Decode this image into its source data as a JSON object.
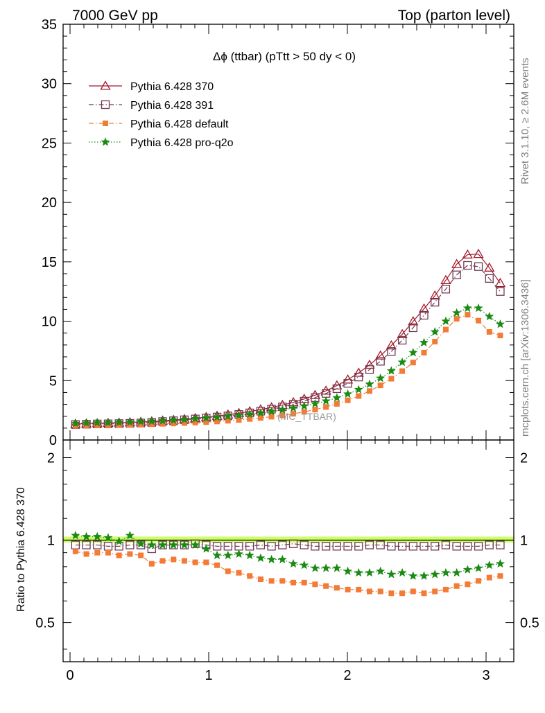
{
  "header": {
    "left": "7000 GeV pp",
    "right": "Top (parton level)"
  },
  "side_text": {
    "rivet": "Rivet 3.1.10, ≥ 2.6M events",
    "mcplots": "mcplots.cern.ch [arXiv:1306.3436]"
  },
  "watermark": "(MC_TTBAR)",
  "colors": {
    "p370": "#a0182a",
    "p391": "#6f3a52",
    "default": "#f27b36",
    "proq2o": "#1b8a14",
    "band": "#ccff66"
  },
  "chart_data": [
    {
      "type": "line",
      "title": "Δϕ (ttbar) (pTtt > 50 dy < 0)",
      "xlim": [
        -0.05,
        3.2
      ],
      "ylim": [
        0,
        35
      ],
      "y_ticks": [
        0,
        5,
        10,
        15,
        20,
        25,
        30,
        35
      ],
      "legend_placement": "top-left",
      "x": [
        0.0393,
        0.1178,
        0.1963,
        0.2749,
        0.3534,
        0.432,
        0.5105,
        0.589,
        0.6676,
        0.7461,
        0.8247,
        0.9032,
        0.9817,
        1.0603,
        1.1388,
        1.2174,
        1.2959,
        1.3744,
        1.453,
        1.5315,
        1.6101,
        1.6886,
        1.7671,
        1.8457,
        1.9242,
        2.0028,
        2.0813,
        2.1598,
        2.2384,
        2.3169,
        2.3955,
        2.474,
        2.5525,
        2.6311,
        2.7096,
        2.7882,
        2.8667,
        2.9452,
        3.0238,
        3.1023
      ],
      "series": [
        {
          "name": "Pythia 6.428 370",
          "color_key": "p370",
          "marker": "triangle",
          "dash": "solid",
          "values": [
            1.35,
            1.38,
            1.4,
            1.42,
            1.45,
            1.48,
            1.52,
            1.56,
            1.62,
            1.68,
            1.75,
            1.83,
            1.92,
            2.02,
            2.13,
            2.26,
            2.4,
            2.56,
            2.74,
            2.94,
            3.17,
            3.45,
            3.77,
            4.14,
            4.58,
            5.08,
            5.65,
            6.32,
            7.1,
            7.95,
            8.9,
            9.98,
            11.05,
            12.15,
            13.45,
            14.8,
            15.6,
            15.65,
            14.5,
            13.2
          ]
        },
        {
          "name": "Pythia 6.428 391",
          "color_key": "p391",
          "marker": "square-open",
          "dash": "dashdot",
          "values": [
            1.3,
            1.33,
            1.35,
            1.36,
            1.38,
            1.4,
            1.43,
            1.48,
            1.55,
            1.62,
            1.7,
            1.77,
            1.85,
            1.93,
            2.03,
            2.15,
            2.28,
            2.43,
            2.6,
            2.79,
            3.01,
            3.27,
            3.57,
            3.92,
            4.32,
            4.77,
            5.3,
            5.93,
            6.63,
            7.45,
            8.4,
            9.45,
            10.5,
            11.6,
            12.7,
            13.9,
            14.7,
            14.6,
            13.6,
            12.5
          ]
        },
        {
          "name": "Pythia 6.428 default",
          "color_key": "default",
          "marker": "square-filled",
          "dash": "dashdot",
          "values": [
            1.2,
            1.22,
            1.23,
            1.24,
            1.26,
            1.28,
            1.3,
            1.33,
            1.36,
            1.39,
            1.43,
            1.47,
            1.51,
            1.56,
            1.62,
            1.69,
            1.77,
            1.86,
            1.96,
            2.08,
            2.21,
            2.37,
            2.56,
            2.78,
            3.04,
            3.34,
            3.7,
            4.12,
            4.6,
            5.16,
            5.8,
            6.52,
            7.35,
            8.28,
            9.3,
            10.2,
            10.55,
            10.05,
            9.1,
            8.8
          ]
        },
        {
          "name": "Pythia 6.428 pro-q2o",
          "color_key": "proq2o",
          "marker": "star",
          "dash": "dotted",
          "values": [
            1.4,
            1.43,
            1.45,
            1.46,
            1.48,
            1.51,
            1.55,
            1.58,
            1.62,
            1.67,
            1.73,
            1.79,
            1.85,
            1.92,
            2.0,
            2.08,
            2.17,
            2.28,
            2.4,
            2.54,
            2.69,
            2.86,
            3.05,
            3.28,
            3.55,
            3.87,
            4.24,
            4.7,
            5.2,
            5.82,
            6.55,
            7.35,
            8.2,
            9.1,
            10.0,
            10.7,
            11.1,
            11.1,
            10.4,
            9.75
          ]
        }
      ]
    },
    {
      "type": "line",
      "ylabel": "Ratio to Pythia 6.428 370",
      "xlim": [
        -0.05,
        3.2
      ],
      "ylim": [
        0.36,
        2.32
      ],
      "y_scale": "log",
      "x_ticks": [
        0,
        1,
        2,
        3
      ],
      "y_ticks": [
        0.5,
        1,
        2
      ],
      "reference_line": 1,
      "band": {
        "lower": 0.98,
        "upper": 1.03
      },
      "x": [
        0.0393,
        0.1178,
        0.1963,
        0.2749,
        0.3534,
        0.432,
        0.5105,
        0.589,
        0.6676,
        0.7461,
        0.8247,
        0.9032,
        0.9817,
        1.0603,
        1.1388,
        1.2174,
        1.2959,
        1.3744,
        1.453,
        1.5315,
        1.6101,
        1.6886,
        1.7671,
        1.8457,
        1.9242,
        2.0028,
        2.0813,
        2.1598,
        2.2384,
        2.3169,
        2.3955,
        2.474,
        2.5525,
        2.6311,
        2.7096,
        2.7882,
        2.8667,
        2.9452,
        3.0238,
        3.1023
      ],
      "series": [
        {
          "name": "Pythia 6.428 391",
          "color_key": "p391",
          "marker": "square-open",
          "dash": "dashdot",
          "values": [
            0.96,
            0.96,
            0.96,
            0.95,
            0.95,
            0.96,
            0.96,
            0.93,
            0.96,
            0.96,
            0.96,
            0.97,
            0.96,
            0.95,
            0.95,
            0.95,
            0.95,
            0.96,
            0.95,
            0.96,
            0.97,
            0.96,
            0.95,
            0.95,
            0.95,
            0.95,
            0.95,
            0.96,
            0.96,
            0.95,
            0.95,
            0.95,
            0.95,
            0.95,
            0.96,
            0.95,
            0.95,
            0.95,
            0.96,
            0.96
          ]
        },
        {
          "name": "Pythia 6.428 default",
          "color_key": "default",
          "marker": "square-filled",
          "dash": "dashdot",
          "values": [
            0.91,
            0.89,
            0.9,
            0.9,
            0.88,
            0.89,
            0.88,
            0.82,
            0.84,
            0.85,
            0.84,
            0.83,
            0.83,
            0.81,
            0.77,
            0.76,
            0.74,
            0.72,
            0.71,
            0.71,
            0.7,
            0.7,
            0.69,
            0.68,
            0.67,
            0.66,
            0.66,
            0.65,
            0.65,
            0.64,
            0.64,
            0.65,
            0.64,
            0.65,
            0.66,
            0.68,
            0.69,
            0.71,
            0.73,
            0.74
          ]
        },
        {
          "name": "Pythia 6.428 pro-q2o",
          "color_key": "proq2o",
          "marker": "star",
          "dash": "dotted",
          "values": [
            1.04,
            1.03,
            1.03,
            1.02,
            0.99,
            1.04,
            0.97,
            0.96,
            0.96,
            0.96,
            0.96,
            0.96,
            0.93,
            0.88,
            0.88,
            0.89,
            0.88,
            0.86,
            0.85,
            0.85,
            0.82,
            0.81,
            0.79,
            0.79,
            0.79,
            0.77,
            0.76,
            0.76,
            0.77,
            0.75,
            0.76,
            0.74,
            0.74,
            0.75,
            0.76,
            0.76,
            0.78,
            0.79,
            0.81,
            0.82
          ]
        }
      ]
    }
  ]
}
